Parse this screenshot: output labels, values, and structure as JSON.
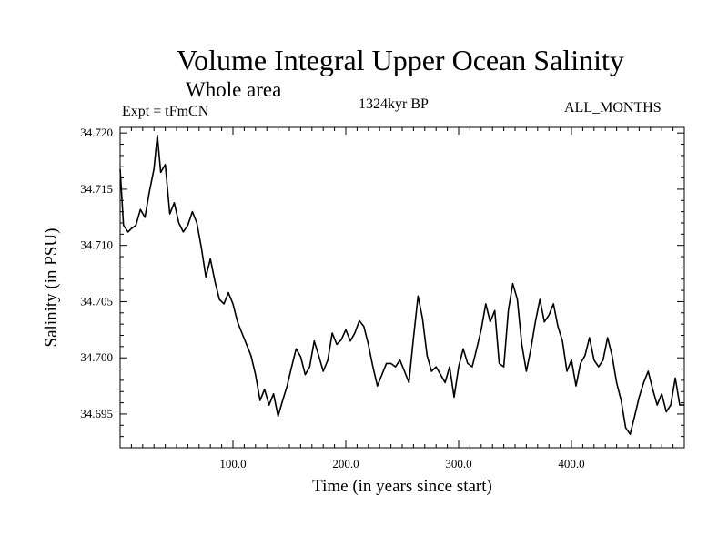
{
  "chart_data": {
    "type": "line",
    "title": "Volume Integral Upper Ocean Salinity",
    "subtitle": "Whole area",
    "experiment_label": "Expt = tFmCN",
    "period_label": "1324kyr BP",
    "months_label": "ALL_MONTHS",
    "xlabel": "Time (in years since start)",
    "ylabel": "Salinity (in PSU)",
    "xlim": [
      0,
      500
    ],
    "ylim": [
      34.692,
      34.7205
    ],
    "x_ticks": [
      100,
      200,
      300,
      400
    ],
    "x_tick_labels": [
      "100.0",
      "200.0",
      "300.0",
      "400.0"
    ],
    "y_ticks": [
      34.695,
      34.7,
      34.705,
      34.71,
      34.715,
      34.72
    ],
    "y_tick_labels": [
      "34.695",
      "34.700",
      "34.705",
      "34.710",
      "34.715",
      "34.720"
    ],
    "series": [
      {
        "name": "salinity",
        "x": [
          0,
          3,
          7,
          10,
          14,
          18,
          22,
          26,
          30,
          33,
          36,
          40,
          44,
          48,
          52,
          56,
          60,
          64,
          68,
          72,
          76,
          80,
          84,
          88,
          92,
          96,
          100,
          104,
          108,
          112,
          116,
          120,
          124,
          128,
          132,
          136,
          140,
          144,
          148,
          152,
          156,
          160,
          164,
          168,
          172,
          176,
          180,
          184,
          188,
          192,
          196,
          200,
          204,
          208,
          212,
          216,
          220,
          224,
          228,
          232,
          236,
          240,
          244,
          248,
          252,
          256,
          260,
          264,
          268,
          272,
          276,
          280,
          284,
          288,
          292,
          296,
          300,
          304,
          308,
          312,
          316,
          320,
          324,
          328,
          332,
          336,
          340,
          344,
          348,
          352,
          356,
          360,
          364,
          368,
          372,
          376,
          380,
          384,
          388,
          392,
          396,
          400,
          404,
          408,
          412,
          416,
          420,
          424,
          428,
          432,
          436,
          440,
          444,
          448,
          452,
          456,
          460,
          464,
          468,
          472,
          476,
          480,
          484,
          488,
          492,
          496,
          500
        ],
        "values": [
          34.7168,
          34.7118,
          34.7112,
          34.7115,
          34.7118,
          34.7132,
          34.7125,
          34.7148,
          34.7168,
          34.7198,
          34.7165,
          34.7172,
          34.7128,
          34.7138,
          34.712,
          34.7112,
          34.7118,
          34.713,
          34.712,
          34.7098,
          34.7072,
          34.7088,
          34.7068,
          34.7052,
          34.7048,
          34.7058,
          34.7048,
          34.7032,
          34.7022,
          34.7012,
          34.7002,
          34.6985,
          34.6962,
          34.6972,
          34.6958,
          34.6968,
          34.6948,
          34.6962,
          34.6975,
          34.6992,
          34.7008,
          34.7001,
          34.6985,
          34.6992,
          34.7015,
          34.7002,
          34.6988,
          34.6998,
          34.7022,
          34.7012,
          34.7016,
          34.7025,
          34.7015,
          34.7022,
          34.7033,
          34.7028,
          34.7012,
          34.6992,
          34.6975,
          34.6985,
          34.6995,
          34.6995,
          34.6992,
          34.6998,
          34.6988,
          34.6978,
          34.7018,
          34.7055,
          34.7035,
          34.7002,
          34.6988,
          34.6992,
          34.6985,
          34.6978,
          34.6992,
          34.6965,
          34.6992,
          34.7008,
          34.6995,
          34.6992,
          34.7008,
          34.7025,
          34.7048,
          34.7032,
          34.7042,
          34.6995,
          34.6992,
          34.7042,
          34.7066,
          34.7052,
          34.7012,
          34.6988,
          34.7008,
          34.7032,
          34.7052,
          34.7032,
          34.7038,
          34.7048,
          34.7028,
          34.7015,
          34.6988,
          34.6998,
          34.6975,
          34.6995,
          34.7002,
          34.7018,
          34.6998,
          34.6992,
          34.6998,
          34.7018,
          34.7002,
          34.6978,
          34.6962,
          34.6938,
          34.6932,
          34.6948,
          34.6965,
          34.6978,
          34.6988,
          34.6972,
          34.6958,
          34.6968,
          34.6952,
          34.6958,
          34.6982,
          34.6958,
          34.6958
        ]
      }
    ]
  }
}
